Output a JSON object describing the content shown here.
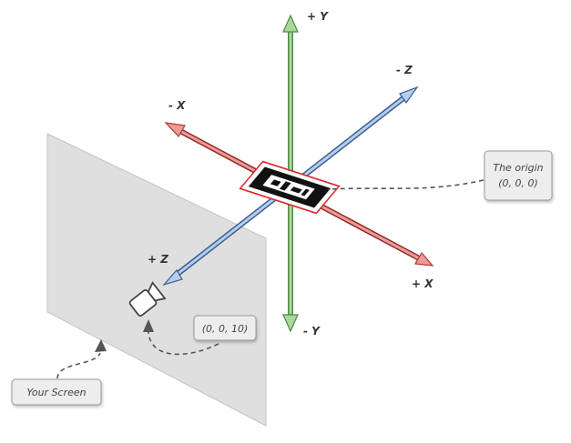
{
  "axes": {
    "y_positive": "+ Y",
    "y_negative": "- Y",
    "x_positive": "+ X",
    "x_negative": "- X",
    "z_positive": "+ Z",
    "z_negative": "- Z"
  },
  "callouts": {
    "origin_line1": "The origin",
    "origin_line2": "(0, 0, 0)",
    "camera_position": "(0, 0, 10)",
    "screen": "Your Screen"
  },
  "colors": {
    "y_axis": "#7bbf6a",
    "x_axis": "#d9534f",
    "z_axis": "#6f9fd8",
    "screen_fill": "#d7d7d7",
    "marker_border": "#e0242b"
  },
  "icons": {
    "camera": "video-camera-icon",
    "marker": "ar-marker-icon"
  }
}
